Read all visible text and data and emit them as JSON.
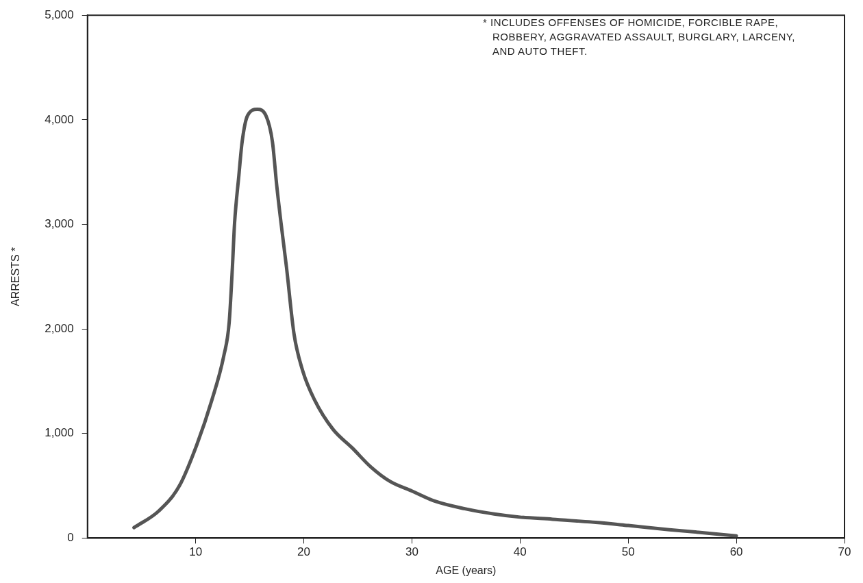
{
  "chart_data": {
    "type": "line",
    "xlabel": "AGE (years)",
    "ylabel": "ARRESTS *",
    "annotations": [
      "* INCLUDES OFFENSES OF HOMICIDE, FORCIBLE RAPE, ROBBERY, AGGRAVATED ASSAULT, BURGLARY, LARCENY, AND AUTO THEFT."
    ],
    "series": [
      {
        "color": "#555555",
        "x": [
          4.3,
          6.6,
          8.5,
          10.1,
          11.5,
          12.6,
          13.1,
          13.4,
          13.6,
          14.0,
          14.3,
          14.8,
          15.7,
          16.5,
          17.1,
          17.5,
          17.9,
          18.4,
          19.1,
          19.9,
          21.0,
          22.7,
          24.5,
          26.2,
          28.0,
          30.0,
          32.2,
          34.9,
          37.6,
          40.0,
          43.0,
          47.0,
          50.0,
          53.8,
          56.5,
          60.0
        ],
        "values": [
          100,
          260,
          500,
          890,
          1320,
          1740,
          2060,
          2590,
          3010,
          3470,
          3790,
          4040,
          4100,
          4040,
          3790,
          3370,
          3010,
          2590,
          1950,
          1600,
          1320,
          1040,
          860,
          680,
          540,
          450,
          350,
          280,
          230,
          200,
          180,
          150,
          120,
          80,
          55,
          20
        ]
      }
    ],
    "xlim": [
      0,
      70
    ],
    "xticks": [
      10,
      20,
      30,
      40,
      50,
      60,
      70
    ],
    "ylim": [
      0,
      5000
    ],
    "yticks": [
      {
        "value": 0,
        "label": "0"
      },
      {
        "value": 1000,
        "label": "1,000"
      },
      {
        "value": 2000,
        "label": "2,000"
      },
      {
        "value": 3000,
        "label": "3,000"
      },
      {
        "value": 4000,
        "label": "4,000"
      },
      {
        "value": 5000,
        "label": "5,000"
      }
    ],
    "grid": false,
    "legend": false,
    "marker": "none",
    "line_style": "solid"
  }
}
